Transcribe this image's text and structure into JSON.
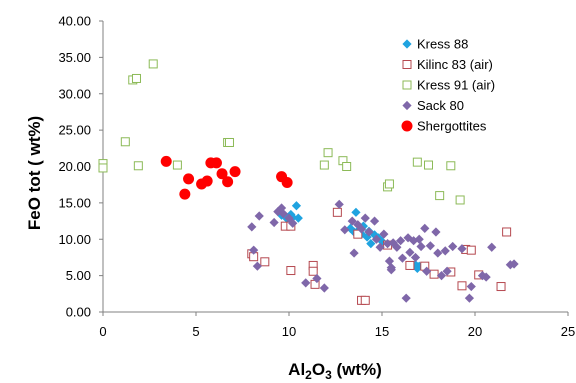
{
  "chart_data": {
    "type": "scatter",
    "xlabel": {
      "prefix": "Al",
      "sub1": "2",
      "mid": "O",
      "sub2": "3",
      "suffix": " (wt%)"
    },
    "ylabel": "FeO tot ( wt%)",
    "xlim": [
      0,
      25
    ],
    "ylim": [
      0,
      40
    ],
    "x_ticks": [
      0,
      5,
      10,
      15,
      20,
      25
    ],
    "y_ticks": [
      0,
      5,
      10,
      15,
      20,
      25,
      30,
      35,
      40
    ],
    "x_tick_labels": [
      "0",
      "5",
      "10",
      "15",
      "20",
      "25"
    ],
    "y_tick_labels": [
      "0.00",
      "5.00",
      "10.00",
      "15.00",
      "20.00",
      "25.00",
      "30.00",
      "35.00",
      "40.00"
    ],
    "grid": false,
    "legend_position": "top-right",
    "series": [
      {
        "name": "Kress 88",
        "marker": "diamond-filled",
        "color": "#1fa3e0",
        "points": [
          [
            9.6,
            13.3
          ],
          [
            9.9,
            12.8
          ],
          [
            10.1,
            13.4
          ],
          [
            10.2,
            13.0
          ],
          [
            10.4,
            14.6
          ],
          [
            10.5,
            12.9
          ],
          [
            13.6,
            13.7
          ],
          [
            13.3,
            11.5
          ],
          [
            13.5,
            11.0
          ],
          [
            13.8,
            11.4
          ],
          [
            13.9,
            10.7
          ],
          [
            14.0,
            11.8
          ],
          [
            14.2,
            10.3
          ],
          [
            14.3,
            11.1
          ],
          [
            14.4,
            9.4
          ],
          [
            14.6,
            10.6
          ],
          [
            14.8,
            10.2
          ],
          [
            15.0,
            9.7
          ],
          [
            16.8,
            6.5
          ],
          [
            16.9,
            6.0
          ],
          [
            17.0,
            6.3
          ]
        ]
      },
      {
        "name": "Kilinc 83 (air)",
        "marker": "square-open",
        "color": "#b5484f",
        "points": [
          [
            8.0,
            8.0
          ],
          [
            8.1,
            7.6
          ],
          [
            8.7,
            6.9
          ],
          [
            9.8,
            11.8
          ],
          [
            10.1,
            11.8
          ],
          [
            10.1,
            5.7
          ],
          [
            11.3,
            6.4
          ],
          [
            11.3,
            5.6
          ],
          [
            11.4,
            3.8
          ],
          [
            12.6,
            13.7
          ],
          [
            13.7,
            10.7
          ],
          [
            13.9,
            1.6
          ],
          [
            14.1,
            1.6
          ],
          [
            15.3,
            9.2
          ],
          [
            16.5,
            6.4
          ],
          [
            17.3,
            6.3
          ],
          [
            17.8,
            5.2
          ],
          [
            18.7,
            5.5
          ],
          [
            19.5,
            8.6
          ],
          [
            19.8,
            8.5
          ],
          [
            20.2,
            5.1
          ],
          [
            21.4,
            3.5
          ],
          [
            21.7,
            11.0
          ],
          [
            19.3,
            3.6
          ]
        ]
      },
      {
        "name": "Kress 91 (air)",
        "marker": "square-open",
        "color": "#8cba57",
        "points": [
          [
            0.0,
            20.4
          ],
          [
            0.0,
            19.8
          ],
          [
            1.2,
            23.4
          ],
          [
            1.6,
            31.9
          ],
          [
            1.8,
            32.1
          ],
          [
            1.9,
            20.1
          ],
          [
            2.7,
            34.1
          ],
          [
            4.0,
            20.2
          ],
          [
            6.7,
            23.3
          ],
          [
            6.8,
            23.3
          ],
          [
            11.9,
            20.2
          ],
          [
            12.1,
            21.9
          ],
          [
            12.9,
            20.8
          ],
          [
            13.1,
            20.0
          ],
          [
            15.3,
            17.2
          ],
          [
            15.4,
            17.6
          ],
          [
            16.9,
            20.6
          ],
          [
            17.5,
            20.2
          ],
          [
            18.1,
            16.0
          ],
          [
            18.7,
            20.1
          ],
          [
            19.2,
            15.4
          ]
        ]
      },
      {
        "name": "Sack 80",
        "marker": "diamond-filled",
        "color": "#7f67a9",
        "points": [
          [
            8.0,
            11.7
          ],
          [
            8.1,
            8.5
          ],
          [
            8.3,
            6.3
          ],
          [
            8.4,
            13.2
          ],
          [
            9.2,
            12.3
          ],
          [
            9.4,
            13.8
          ],
          [
            9.6,
            14.3
          ],
          [
            9.7,
            13.5
          ],
          [
            10.0,
            12.9
          ],
          [
            10.2,
            12.2
          ],
          [
            10.9,
            4.0
          ],
          [
            11.5,
            4.6
          ],
          [
            11.9,
            3.3
          ],
          [
            12.7,
            14.8
          ],
          [
            13.0,
            11.3
          ],
          [
            13.4,
            12.5
          ],
          [
            13.5,
            8.1
          ],
          [
            13.7,
            12.0
          ],
          [
            13.9,
            11.4
          ],
          [
            14.1,
            12.9
          ],
          [
            14.3,
            11.0
          ],
          [
            14.6,
            12.5
          ],
          [
            14.7,
            10.0
          ],
          [
            14.9,
            8.9
          ],
          [
            15.1,
            10.7
          ],
          [
            15.3,
            9.4
          ],
          [
            15.4,
            7.0
          ],
          [
            15.5,
            5.8
          ],
          [
            15.6,
            9.5
          ],
          [
            15.8,
            8.9
          ],
          [
            16.0,
            9.8
          ],
          [
            16.1,
            7.4
          ],
          [
            16.3,
            1.9
          ],
          [
            16.4,
            10.2
          ],
          [
            16.5,
            8.2
          ],
          [
            16.7,
            9.8
          ],
          [
            16.8,
            7.5
          ],
          [
            17.0,
            10.0
          ],
          [
            17.1,
            9.0
          ],
          [
            17.3,
            11.5
          ],
          [
            17.4,
            5.6
          ],
          [
            17.6,
            9.1
          ],
          [
            17.9,
            11.0
          ],
          [
            18.0,
            8.1
          ],
          [
            18.2,
            5.0
          ],
          [
            18.4,
            8.4
          ],
          [
            18.5,
            5.6
          ],
          [
            18.8,
            9.0
          ],
          [
            19.3,
            8.7
          ],
          [
            19.7,
            1.9
          ],
          [
            19.8,
            3.5
          ],
          [
            20.4,
            5.0
          ],
          [
            20.6,
            4.8
          ],
          [
            20.9,
            8.9
          ],
          [
            21.9,
            6.5
          ],
          [
            22.1,
            6.6
          ],
          [
            15.5,
            6.1
          ]
        ]
      },
      {
        "name": "Shergottites",
        "marker": "circle-filled",
        "color": "#ff0000",
        "points": [
          [
            3.4,
            20.7
          ],
          [
            4.4,
            16.2
          ],
          [
            4.6,
            18.3
          ],
          [
            5.3,
            17.6
          ],
          [
            5.6,
            18.0
          ],
          [
            5.8,
            20.5
          ],
          [
            6.1,
            20.5
          ],
          [
            6.4,
            19.0
          ],
          [
            6.7,
            17.9
          ],
          [
            7.1,
            19.3
          ],
          [
            9.6,
            18.6
          ],
          [
            9.9,
            17.8
          ]
        ]
      }
    ]
  }
}
